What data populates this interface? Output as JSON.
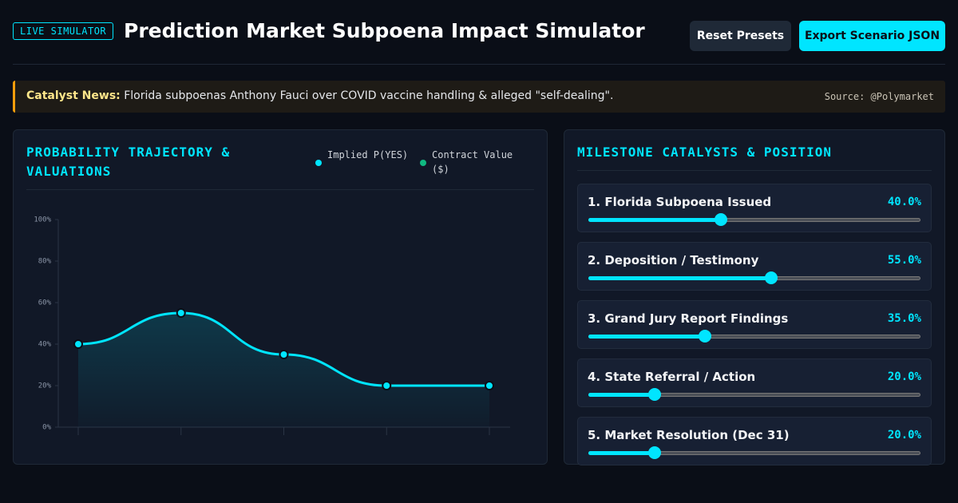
{
  "header": {
    "badge": "LIVE SIMULATOR",
    "title": "Prediction Market Subpoena Impact Simulator",
    "buttons": [
      "Reset Presets",
      "Export Scenario JSON"
    ]
  },
  "banner": {
    "label": "Catalyst News:",
    "text": "Florida subpoenas Anthony Fauci over COVID vaccine handling & alleged \"self-dealing\".",
    "source": "Source: @Polymarket"
  },
  "chart_data": {
    "type": "line",
    "title": "PROBABILITY TRAJECTORY & VALUATIONS",
    "legend": [
      {
        "name": "Implied P(YES)",
        "color": "#00e5ff"
      },
      {
        "name": "Contract Value ($)",
        "color": "#10b981"
      }
    ],
    "categories": [
      null,
      null,
      null,
      null,
      null
    ],
    "series": [
      {
        "name": "Implied P(YES)",
        "color": "#00e5ff",
        "values": [
          40,
          55,
          35,
          20,
          20
        ]
      }
    ],
    "ylim": [
      0,
      100
    ],
    "yticks": [
      {
        "value": 0,
        "label": "0%"
      },
      {
        "value": 20,
        "label": "20%"
      },
      {
        "value": 40,
        "label": "40%"
      },
      {
        "value": 60,
        "label": "60%"
      },
      {
        "value": 80,
        "label": "80%"
      },
      {
        "value": 100,
        "label": "100%"
      }
    ],
    "grid": true
  },
  "milestones": {
    "title": "MILESTONE CATALYSTS & POSITION",
    "slider_lim": [
      0,
      100
    ],
    "items": [
      {
        "name": "1. Florida Subpoena Issued",
        "value": 40,
        "value_label": "40.0%"
      },
      {
        "name": "2. Deposition / Testimony",
        "value": 55,
        "value_label": "55.0%"
      },
      {
        "name": "3. Grand Jury Report Findings",
        "value": 35,
        "value_label": "35.0%"
      },
      {
        "name": "4. State Referral / Action",
        "value": 20,
        "value_label": "20.0%"
      },
      {
        "name": "5. Market Resolution (Dec 31)",
        "value": 20,
        "value_label": "20.0%"
      }
    ]
  }
}
